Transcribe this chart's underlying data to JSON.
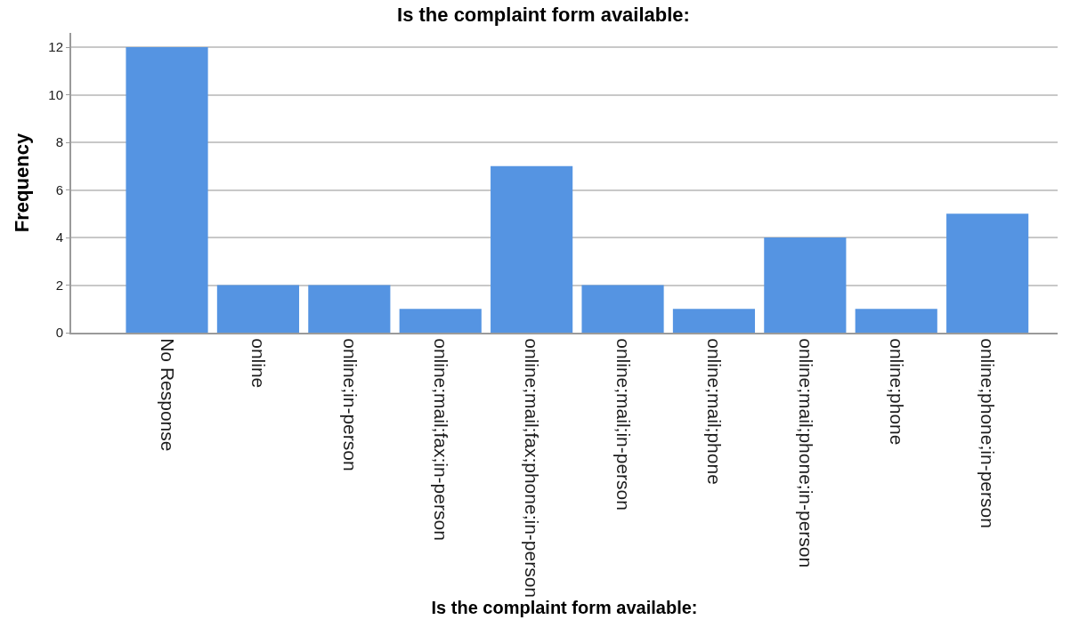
{
  "chart_data": {
    "type": "bar",
    "title": "Is the complaint form available:",
    "xlabel": "Is the complaint form available:",
    "ylabel": "Frequency",
    "categories": [
      "No Response",
      "online",
      "online;in-person",
      "online;mail;fax;in-person",
      "online;mail;fax;phone;in-person",
      "online;mail;in-person",
      "online;mail;phone",
      "online;mail;phone;in-person",
      "online;phone",
      "online;phone;in-person"
    ],
    "values": [
      12,
      2,
      2,
      1,
      7,
      2,
      1,
      4,
      1,
      5
    ],
    "color": "#5594e2",
    "ylim": [
      0,
      12.6
    ],
    "yticks": [
      0,
      2,
      4,
      6,
      8,
      10,
      12
    ],
    "grid": "y"
  }
}
